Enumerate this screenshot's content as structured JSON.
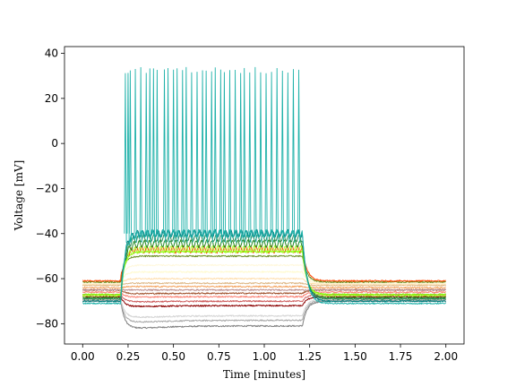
{
  "chart_data": {
    "type": "line",
    "title": "",
    "xlabel": "Time [minutes]",
    "ylabel": "Voltage [mV]",
    "xlim": [
      -0.1,
      2.1
    ],
    "ylim": [
      -89,
      43
    ],
    "xticks": [
      0.0,
      0.25,
      0.5,
      0.75,
      1.0,
      1.25,
      1.5,
      1.75,
      2.0
    ],
    "xtick_labels": [
      "0.00",
      "0.25",
      "0.50",
      "0.75",
      "1.00",
      "1.25",
      "1.50",
      "1.75",
      "2.00"
    ],
    "yticks": [
      -80,
      -60,
      -40,
      -20,
      0,
      20,
      40
    ],
    "ytick_labels": [
      "−80",
      "−60",
      "−40",
      "−20",
      "0",
      "20",
      "40"
    ],
    "grid": false,
    "legend": "none",
    "stimulus_window": [
      0.21,
      1.21
    ],
    "spike_times": [
      0.235,
      0.25,
      0.262,
      0.29,
      0.32,
      0.35,
      0.37,
      0.39,
      0.41,
      0.45,
      0.47,
      0.5,
      0.52,
      0.55,
      0.57,
      0.6,
      0.63,
      0.66,
      0.68,
      0.71,
      0.73,
      0.76,
      0.78,
      0.81,
      0.84,
      0.87,
      0.89,
      0.92,
      0.95,
      0.98,
      1.01,
      1.04,
      1.07,
      1.1,
      1.13,
      1.16,
      1.19
    ],
    "spike_peak_mV": 34,
    "series": [
      {
        "color": "#7f7f7f",
        "rest": -70,
        "plateau": -81
      },
      {
        "color": "#a9a9a9",
        "rest": -69.5,
        "plateau": -78.5
      },
      {
        "color": "#d3d3d3",
        "rest": -69,
        "plateau": -76.5
      },
      {
        "color": "#8b0000",
        "rest": -68,
        "plateau": -72
      },
      {
        "color": "#cd5c5c",
        "rest": -67,
        "plateau": -70
      },
      {
        "color": "#fa8072",
        "rest": -66,
        "plateau": -68
      },
      {
        "color": "#a0522d",
        "rest": -65,
        "plateau": -66.5
      },
      {
        "color": "#bc8f8f",
        "rest": -65,
        "plateau": -65
      },
      {
        "color": "#f4a460",
        "rest": -64,
        "plateau": -63.5
      },
      {
        "color": "#deb887",
        "rest": -63,
        "plateau": -62
      },
      {
        "color": "#ffdead",
        "rest": -62.5,
        "plateau": -60
      },
      {
        "color": "#fffacd",
        "rest": -62,
        "plateau": -57
      },
      {
        "color": "#fff8dc",
        "rest": -62,
        "plateau": -54
      },
      {
        "color": "#6b8e23",
        "rest": -61.5,
        "plateau": -50
      },
      {
        "color": "#ff4500",
        "rest": -61,
        "plateau": -47
      },
      {
        "color": "#7cfc00",
        "rest": -67,
        "plateau": -48
      },
      {
        "color": "#adff2f",
        "rest": -67.5,
        "plateau": -47
      },
      {
        "color": "#228b22",
        "rest": -68.5,
        "plateau": -44.5
      },
      {
        "color": "#2e8b57",
        "rest": -69,
        "plateau": -42
      },
      {
        "color": "#008080",
        "rest": -70,
        "plateau": -40
      },
      {
        "color": "#20b2aa",
        "rest": -71,
        "plateau": -40
      }
    ]
  }
}
